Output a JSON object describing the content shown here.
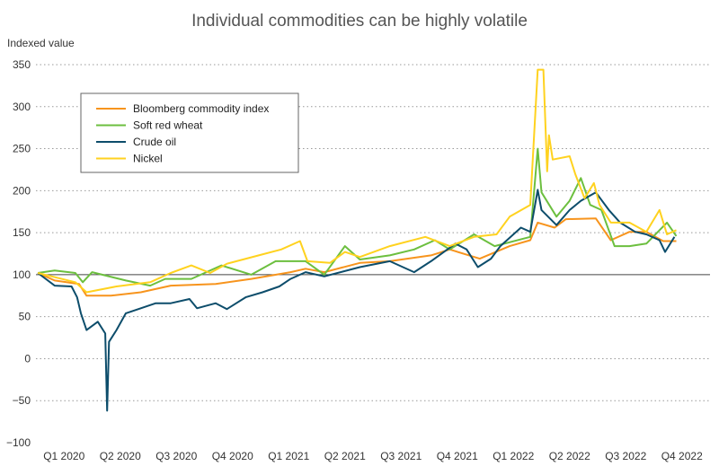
{
  "chart_data": {
    "type": "line",
    "title": "Individual commodities can be highly volatile",
    "ylabel": "Indexed value",
    "xlabel": "",
    "x_unit": "months since Jan 2020",
    "xlim": [
      0,
      36
    ],
    "ylim": [
      -100,
      350
    ],
    "yticks": [
      350,
      300,
      250,
      200,
      150,
      100,
      50,
      0,
      -50,
      -100
    ],
    "ytick_labels": [
      "350",
      "300",
      "250",
      "200",
      "150",
      "100",
      "50",
      "0",
      "−50",
      "−100"
    ],
    "baseline": 100,
    "xticks": [
      1.5,
      4.5,
      7.5,
      10.5,
      13.5,
      16.5,
      19.5,
      22.5,
      25.5,
      28.5,
      31.5,
      34.5
    ],
    "xtick_labels": [
      "Q1 2020",
      "Q2 2020",
      "Q3 2020",
      "Q4 2020",
      "Q1 2021",
      "Q2 2021",
      "Q3 2021",
      "Q4 2021",
      "Q1 2022",
      "Q2 2022",
      "Q3 2022",
      "Q4 2022"
    ],
    "grid": "horizontal dotted",
    "legend_position": "top-left",
    "series": [
      {
        "name": "Bloomberg commodity index",
        "color": "#f7941d",
        "x": [
          0.1,
          1.0,
          2.3,
          2.7,
          4.0,
          5.6,
          7.2,
          9.6,
          11.5,
          13.6,
          14.4,
          15.4,
          17.3,
          18.9,
          21.1,
          22.1,
          23.7,
          25.3,
          26.4,
          26.8,
          27.7,
          28.3,
          29.9,
          30.7,
          31.7,
          32.6,
          33.5,
          34.2
        ],
        "y": [
          102,
          93,
          89,
          75,
          75,
          79,
          87,
          89,
          95,
          103,
          107,
          103,
          114,
          116,
          123,
          130,
          119,
          134,
          141,
          162,
          156,
          166,
          167,
          141,
          151,
          151,
          140,
          140
        ]
      },
      {
        "name": "Soft red wheat",
        "color": "#6cbf3f",
        "x": [
          0.1,
          1.0,
          2.1,
          2.5,
          3.0,
          4.8,
          6.1,
          6.9,
          8.3,
          9.9,
          11.5,
          12.8,
          14.4,
          15.4,
          16.5,
          17.3,
          18.9,
          20.2,
          21.3,
          22.1,
          23.4,
          24.5,
          26.4,
          26.8,
          27.0,
          27.8,
          28.5,
          29.1,
          29.6,
          30.2,
          30.9,
          31.7,
          32.6,
          33.7,
          34.2
        ],
        "y": [
          102,
          105,
          102,
          91,
          103,
          93,
          87,
          95,
          95,
          111,
          100,
          116,
          116,
          100,
          134,
          118,
          123,
          130,
          141,
          130,
          148,
          134,
          145,
          250,
          198,
          169,
          188,
          215,
          183,
          177,
          134,
          134,
          137,
          162,
          146
        ]
      },
      {
        "name": "Crude oil",
        "color": "#0d4d6b",
        "x": [
          0.1,
          1.0,
          1.9,
          2.2,
          2.4,
          2.7,
          3.3,
          3.7,
          3.8,
          3.9,
          4.3,
          4.8,
          5.6,
          6.4,
          7.2,
          8.2,
          8.6,
          9.6,
          10.2,
          11.2,
          12.1,
          13.0,
          13.6,
          14.4,
          15.4,
          17.3,
          18.9,
          20.2,
          21.1,
          22.4,
          23.0,
          23.6,
          24.3,
          24.8,
          25.9,
          26.4,
          26.8,
          27.0,
          27.8,
          28.5,
          29.1,
          29.9,
          30.6,
          31.2,
          32.0,
          32.6,
          33.3,
          33.6,
          34.1
        ],
        "y": [
          102,
          87,
          86,
          73,
          54,
          34,
          44,
          30,
          -62,
          20,
          34,
          54,
          60,
          66,
          66,
          71,
          60,
          66,
          59,
          73,
          79,
          86,
          95,
          103,
          98,
          109,
          116,
          103,
          116,
          137,
          130,
          109,
          119,
          134,
          156,
          151,
          201,
          177,
          159,
          177,
          188,
          198,
          177,
          162,
          151,
          148,
          141,
          127,
          145
        ]
      },
      {
        "name": "Nickel",
        "color": "#ffd21f",
        "x": [
          0.1,
          2.1,
          2.7,
          4.3,
          6.1,
          7.2,
          8.3,
          9.3,
          10.2,
          11.9,
          13.1,
          14.1,
          14.5,
          15.7,
          16.5,
          17.3,
          18.9,
          20.8,
          22.1,
          23.4,
          24.6,
          25.3,
          26.4,
          26.8,
          27.1,
          27.3,
          27.4,
          27.6,
          28.5,
          28.8,
          29.3,
          29.8,
          30.1,
          30.7,
          31.7,
          32.6,
          33.3,
          33.7,
          34.2
        ],
        "y": [
          102,
          91,
          79,
          86,
          91,
          102,
          111,
          102,
          113,
          123,
          130,
          140,
          116,
          114,
          127,
          121,
          134,
          145,
          134,
          145,
          148,
          169,
          183,
          344,
          344,
          223,
          266,
          237,
          241,
          220,
          191,
          209,
          183,
          162,
          162,
          151,
          177,
          148,
          153
        ]
      }
    ]
  }
}
